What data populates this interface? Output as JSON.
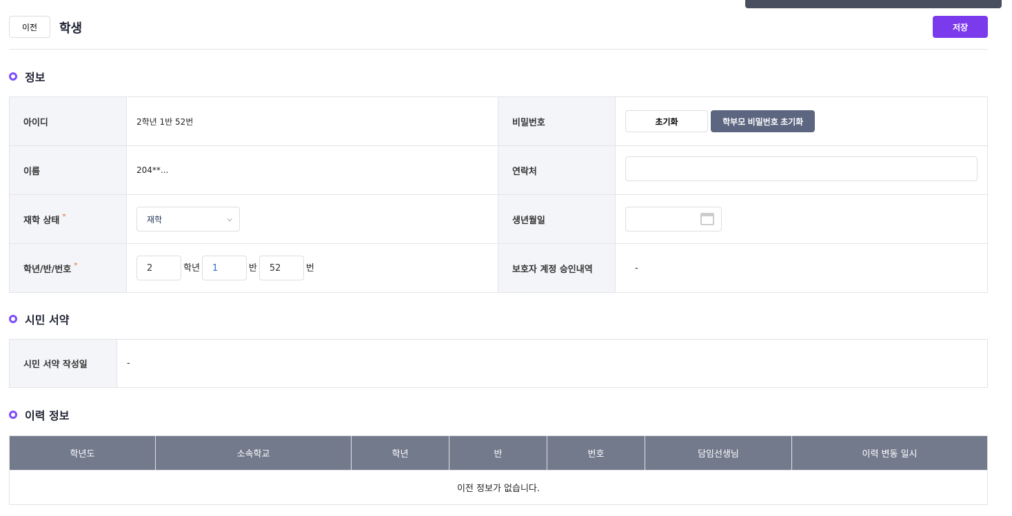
{
  "header": {
    "back_label": "이전",
    "title": "학생",
    "save_label": "저장"
  },
  "info": {
    "section_title": "정보",
    "id_label": "아이디",
    "id_value": "2학년 1반 52번",
    "password_label": "비밀번호",
    "reset_label": "초기화",
    "parent_reset_label": "학부모 비밀번호 초기화",
    "name_label": "이름",
    "name_value": "204**...",
    "contact_label": "연락처",
    "contact_value": "",
    "status_label": "재학 상태",
    "status_value": "재학",
    "birth_label": "생년월일",
    "birth_value": "",
    "grade_label": "학년/반/번호",
    "grade": "2",
    "grade_unit": "학년",
    "class": "1",
    "class_unit": "반",
    "number": "52",
    "number_unit": "번",
    "guardian_label": "보호자 계정 승인내역",
    "guardian_value": "-",
    "required_mark": "*"
  },
  "pledge": {
    "section_title": "시민 서약",
    "date_label": "시민 서약 작성일",
    "date_value": "-"
  },
  "history": {
    "section_title": "이력 정보",
    "columns": [
      "학년도",
      "소속학교",
      "학년",
      "반",
      "번호",
      "담임선생님",
      "이력 변동 일시"
    ],
    "empty_text": "이전 정보가 없습니다."
  },
  "colors": {
    "accent": "#7c3aed",
    "header_bg": "#737a8c"
  }
}
